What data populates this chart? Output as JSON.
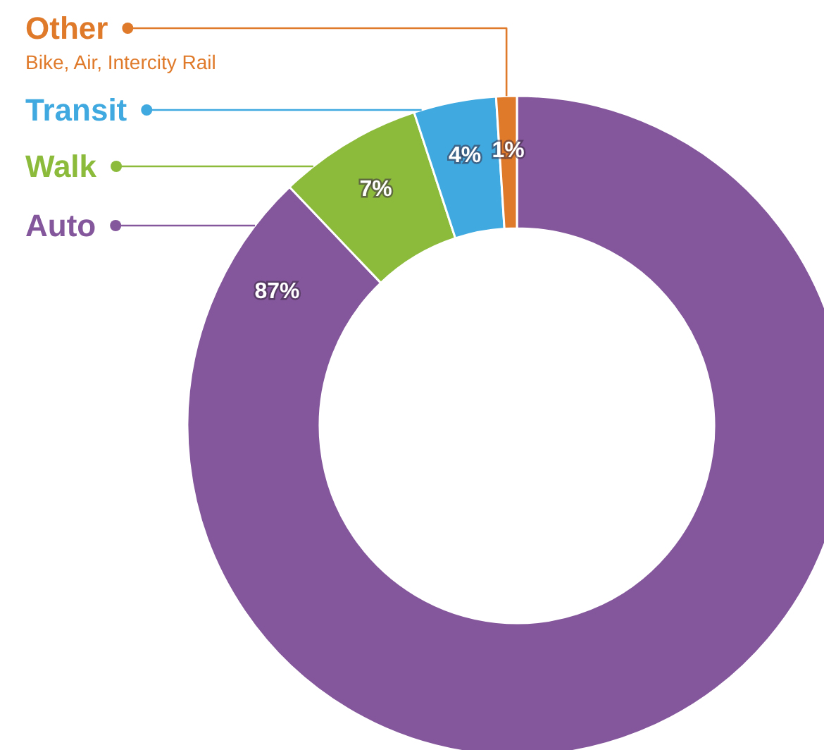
{
  "chart_data": {
    "type": "donut",
    "categories": [
      "Auto",
      "Walk",
      "Transit",
      "Other"
    ],
    "values": [
      87,
      7,
      4,
      1
    ],
    "colors": [
      "#84569b",
      "#8cbb3c",
      "#3fa9e0",
      "#e07a2b"
    ],
    "value_labels": [
      "87%",
      "7%",
      "4%",
      "1%"
    ],
    "annotations": [
      {
        "text": "Bike, Air, Intercity Rail",
        "x": "Other"
      }
    ],
    "legend": "top left"
  }
}
